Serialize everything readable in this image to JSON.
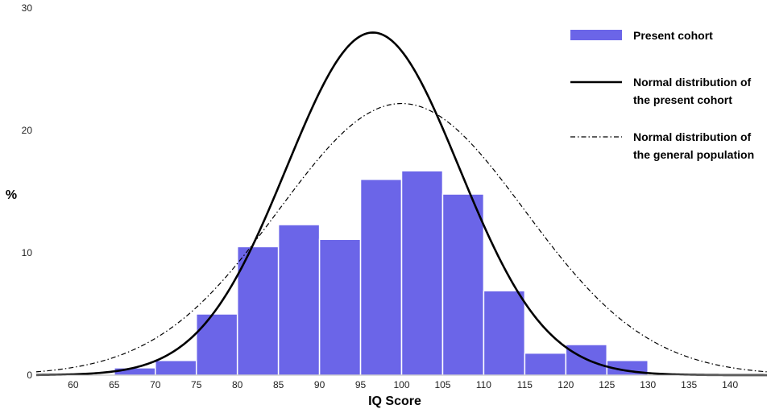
{
  "chart_data": {
    "type": "bar",
    "xlabel": "IQ Score",
    "ylabel": "%",
    "xlim": [
      55.5,
      144.5
    ],
    "ylim": [
      0,
      30
    ],
    "x_ticks": [
      60,
      65,
      70,
      75,
      80,
      85,
      90,
      95,
      100,
      105,
      110,
      115,
      120,
      125,
      130,
      135,
      140
    ],
    "y_ticks": [
      0,
      10,
      20,
      30
    ],
    "grid": false,
    "legend_position": "top-right",
    "colors": {
      "bars": "#6b65e8",
      "bar_edge": "#ffffff",
      "curves": "#000000"
    },
    "legend": [
      {
        "key": "bars",
        "style": "bar",
        "lines": [
          "Present cohort"
        ]
      },
      {
        "key": "cohort_normal",
        "style": "solid",
        "lines": [
          "Normal distribution of",
          "the present cohort"
        ]
      },
      {
        "key": "population_normal",
        "style": "dashdot",
        "lines": [
          "Normal distribution of",
          "the general population"
        ]
      }
    ],
    "bars": [
      {
        "bin": [
          65,
          70
        ],
        "value": 0.6
      },
      {
        "bin": [
          70,
          75
        ],
        "value": 1.2
      },
      {
        "bin": [
          75,
          80
        ],
        "value": 5.0
      },
      {
        "bin": [
          80,
          85
        ],
        "value": 10.5
      },
      {
        "bin": [
          85,
          90
        ],
        "value": 12.3
      },
      {
        "bin": [
          90,
          95
        ],
        "value": 11.1
      },
      {
        "bin": [
          95,
          100
        ],
        "value": 16.0
      },
      {
        "bin": [
          100,
          105
        ],
        "value": 16.7
      },
      {
        "bin": [
          105,
          110
        ],
        "value": 14.8
      },
      {
        "bin": [
          110,
          115
        ],
        "value": 6.9
      },
      {
        "bin": [
          115,
          120
        ],
        "value": 1.8
      },
      {
        "bin": [
          120,
          125
        ],
        "value": 2.5
      },
      {
        "bin": [
          125,
          130
        ],
        "value": 1.2
      }
    ],
    "curves": [
      {
        "key": "cohort_normal",
        "style": "solid",
        "mean": 96.5,
        "sd": 10.5,
        "peak": 28.0
      },
      {
        "key": "population_normal",
        "style": "dashdot",
        "mean": 100,
        "sd": 15,
        "peak": 22.2
      }
    ]
  }
}
